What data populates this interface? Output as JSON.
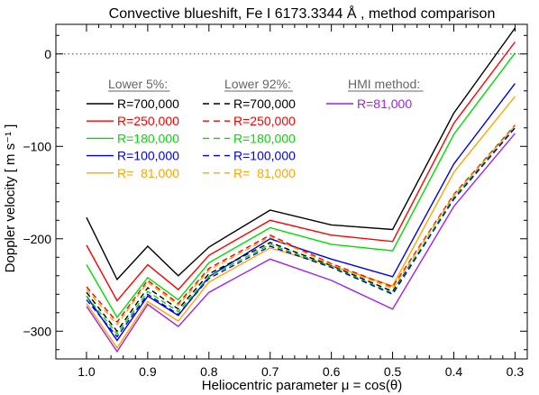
{
  "chart_data": {
    "type": "line",
    "title": "Convective blueshift, Fe I 6173.3344 Å , method comparison",
    "xlabel": "Heliocentric parameter μ = cos(θ)",
    "ylabel": "Doppler velocity [ m s⁻¹ ]",
    "xlim": [
      1.05,
      0.28
    ],
    "ylim": [
      -330,
      32
    ],
    "x_ticks": [
      1.0,
      0.9,
      0.8,
      0.7,
      0.6,
      0.5,
      0.4,
      0.3
    ],
    "x_tick_labels": [
      "1.0",
      "0.9",
      "0.8",
      "0.7",
      "0.6",
      "0.5",
      "0.4",
      "0.3"
    ],
    "y_ticks": [
      0,
      -100,
      -200,
      -300
    ],
    "y_tick_labels": [
      "0",
      "−100",
      "−200",
      "−300"
    ],
    "zero_line": "dotted",
    "grid": false,
    "x": [
      1.0,
      0.95,
      0.9,
      0.85,
      0.8,
      0.7,
      0.6,
      0.5,
      0.4,
      0.3
    ],
    "legend": {
      "groups": [
        {
          "header": "Lower 5%:",
          "style": "solid",
          "entries": [
            "R=700,000",
            "R=250,000",
            "R=180,000",
            "R=100,000",
            "R=  81,000"
          ]
        },
        {
          "header": "Lower 92%:",
          "style": "dashed",
          "entries": [
            "R=700,000",
            "R=250,000",
            "R=180,000",
            "R=100,000",
            "R=  81,000"
          ]
        },
        {
          "header": "HMI method:",
          "style": "solid",
          "entries": [
            "R=81,000"
          ]
        }
      ]
    },
    "series": [
      {
        "name": "R=700,000",
        "group": "Lower 5%",
        "dash": false,
        "color": "#000000",
        "values": [
          -177,
          -244,
          -208,
          -240,
          -209,
          -169,
          -185,
          -190,
          -64,
          28
        ]
      },
      {
        "name": "R=250,000",
        "group": "Lower 5%",
        "dash": false,
        "color": "#ff0000",
        "values": [
          -207,
          -267,
          -228,
          -255,
          -218,
          -180,
          -196,
          -203,
          -75,
          13
        ]
      },
      {
        "name": "R=180,000",
        "group": "Lower 5%",
        "dash": false,
        "color": "#00dd00",
        "values": [
          -228,
          -285,
          -242,
          -266,
          -226,
          -188,
          -206,
          -213,
          -87,
          1
        ]
      },
      {
        "name": "R=100,000",
        "group": "Lower 5%",
        "dash": false,
        "color": "#0000ee",
        "values": [
          -262,
          -310,
          -262,
          -283,
          -241,
          -200,
          -222,
          -241,
          -119,
          -32
        ]
      },
      {
        "name": "R=  81,000",
        "group": "Lower 5%",
        "dash": false,
        "color": "#ffa500",
        "values": [
          -270,
          -318,
          -268,
          -289,
          -247,
          -210,
          -229,
          -251,
          -128,
          -46
        ]
      },
      {
        "name": "R=700,000",
        "group": "Lower 92%",
        "dash": true,
        "color": "#000000",
        "values": [
          -258,
          -300,
          -253,
          -276,
          -238,
          -204,
          -229,
          -257,
          -157,
          -80
        ]
      },
      {
        "name": "R=250,000",
        "group": "Lower 92%",
        "dash": true,
        "color": "#ff0000",
        "values": [
          -252,
          -290,
          -245,
          -270,
          -232,
          -196,
          -227,
          -252,
          -152,
          -77
        ]
      },
      {
        "name": "R=180,000",
        "group": "Lower 92%",
        "dash": true,
        "color": "#00dd00",
        "values": [
          -262,
          -303,
          -257,
          -279,
          -241,
          -206,
          -230,
          -259,
          -155,
          -78
        ]
      },
      {
        "name": "R=100,000",
        "group": "Lower 92%",
        "dash": true,
        "color": "#0000ee",
        "values": [
          -266,
          -306,
          -260,
          -282,
          -243,
          -208,
          -231,
          -260,
          -157,
          -80
        ]
      },
      {
        "name": "R=  81,000",
        "group": "Lower 92%",
        "dash": true,
        "color": "#ffa500",
        "values": [
          -255,
          -293,
          -247,
          -272,
          -234,
          -198,
          -228,
          -254,
          -153,
          -78
        ]
      },
      {
        "name": "R=81,000",
        "group": "HMI method",
        "dash": false,
        "color": "#a020f0",
        "values": [
          -273,
          -322,
          -271,
          -295,
          -258,
          -222,
          -245,
          -276,
          -165,
          -86
        ]
      }
    ]
  }
}
